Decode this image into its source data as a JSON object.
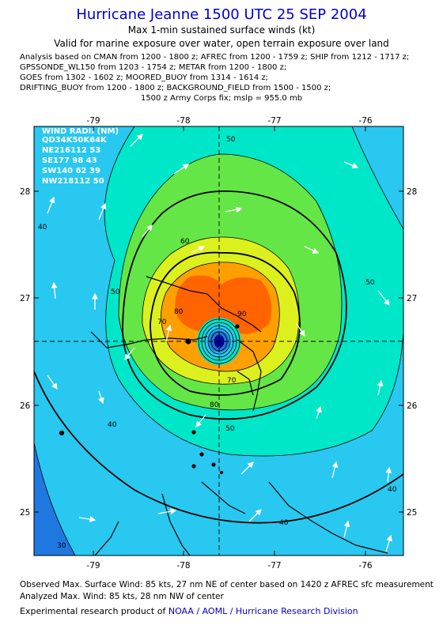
{
  "header": {
    "title": "Hurricane Jeanne 1500 UTC 25 SEP 2004",
    "subtitle1": "Max 1-min sustained surface winds (kt)",
    "subtitle2": "Valid for marine exposure over water, open terrain exposure over land",
    "analysis_lines": [
      "Analysis based on  CMAN from 1200 - 1800 z;  AFREC from 1200 - 1759 z;  SHIP from 1212 - 1717 z;",
      "GPSSONDE_WL150 from 1203 - 1754 z;  METAR from 1200 - 1800 z;",
      "GOES from 1302 - 1602 z;  MOORED_BUOY from 1314 - 1614 z;",
      "DRIFTING_BUOY from 1200 - 1800 z;  BACKGROUND_FIELD from 1500 - 1500 z;"
    ],
    "fix": "1500 z Army Corps fix; mslp = 955.0 mb"
  },
  "map": {
    "lon_ticks": [
      "-79",
      "-78",
      "-77",
      "-76"
    ],
    "lat_ticks": [
      "28",
      "27",
      "26",
      "25"
    ],
    "contour_labels": [
      "50",
      "50",
      "40",
      "40",
      "60",
      "70",
      "80",
      "90",
      "70",
      "80",
      "50",
      "50",
      "40",
      "40",
      "30"
    ],
    "wind_radii": {
      "title": "WIND RADII (NM)",
      "header": "QD34K50K64K",
      "rows": [
        "NE216112 53",
        "SE177 98 43",
        "SW140 62 39",
        "NW218112 50"
      ]
    },
    "colors": {
      "land": "#000000",
      "title": "#0000cc",
      "wind_30": "#1e78e0",
      "wind_40": "#28c8f0",
      "wind_50": "#00e6c8",
      "wind_60": "#64e646",
      "wind_70": "#dcf01e",
      "wind_80": "#ffa000",
      "wind_90": "#ff6400"
    }
  },
  "footer": {
    "line1": "Observed Max. Surface Wind: 85 kts, 27 nm NE of center based on 1420 z AFREC sfc measurement",
    "line2": "Analyzed Max. Wind: 85 kts, 28 nm NW of center",
    "credit_prefix": "Experimental research product of",
    "credit_link": "NOAA / AOML / Hurricane Research Division"
  }
}
